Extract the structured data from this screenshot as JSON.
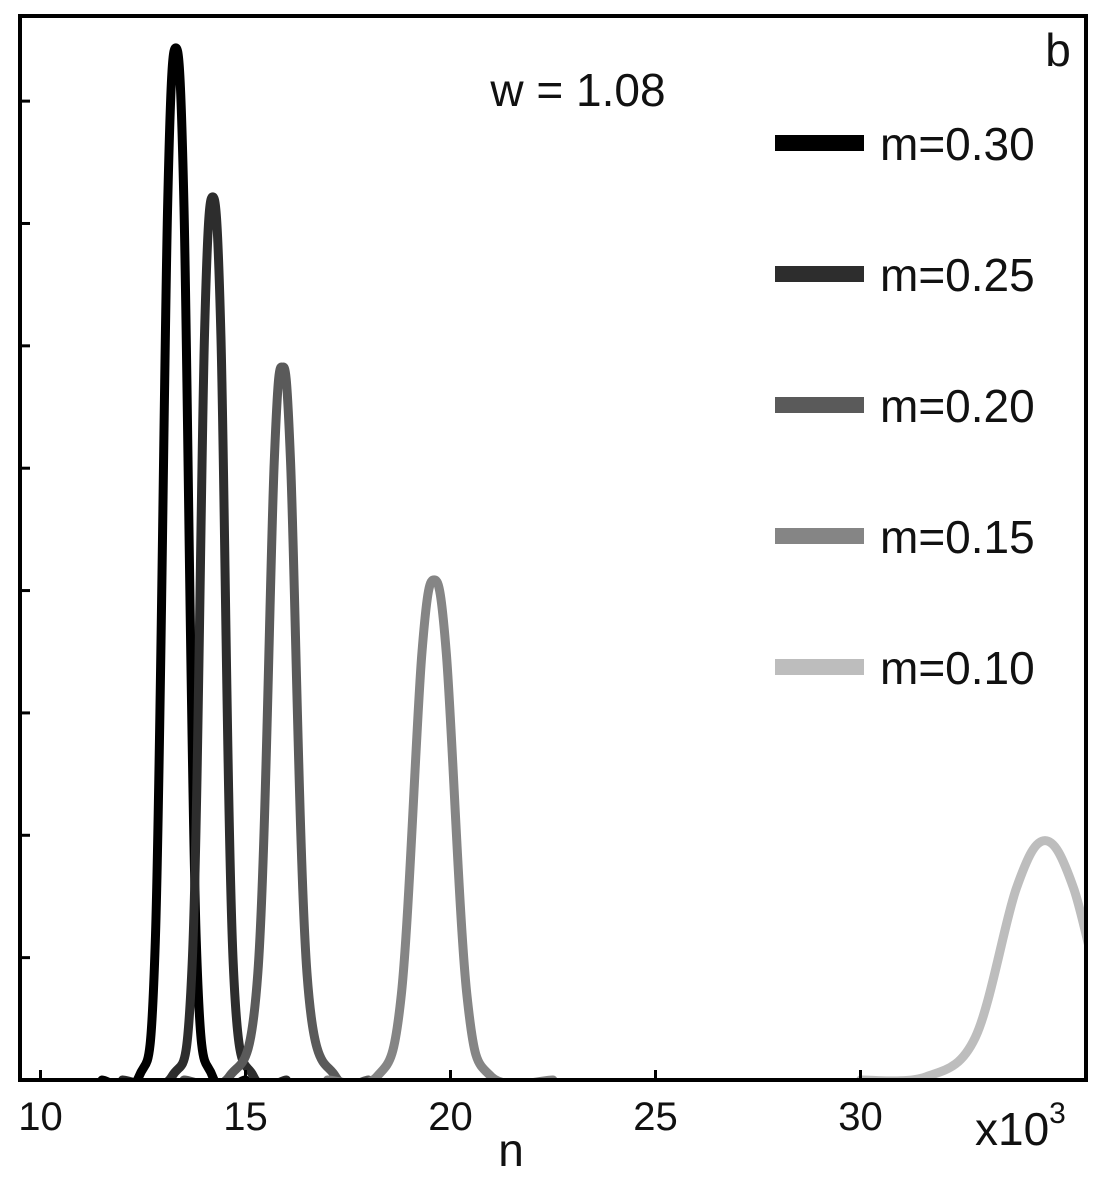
{
  "chart_data": {
    "type": "line",
    "panel_label": "b",
    "annotation": "w = 1.08",
    "xlabel": "n",
    "x_multiplier_label": "x10",
    "x_multiplier_exponent": "3",
    "xlim": [
      9.5,
      35.5
    ],
    "ylim": [
      0,
      1.0
    ],
    "x_ticks": [
      10,
      15,
      20,
      25,
      30
    ],
    "x_tick_labels": [
      "10",
      "15",
      "20",
      "25",
      "30"
    ],
    "y_ticks": [
      0.115,
      0.23,
      0.345,
      0.46,
      0.575,
      0.69,
      0.805,
      0.92
    ],
    "grid": false,
    "legend_position": "right",
    "series": [
      {
        "name": "m=0.30",
        "color": "#000000",
        "x": [
          11.5,
          12.4,
          12.8,
          13.1,
          13.3,
          13.5,
          13.8,
          14.2,
          15.0
        ],
        "y": [
          0.0,
          0.003,
          0.13,
          0.82,
          0.97,
          0.82,
          0.13,
          0.003,
          0.0
        ]
      },
      {
        "name": "m=0.25",
        "color": "#2d2d2d",
        "x": [
          12.0,
          13.2,
          13.7,
          14.0,
          14.2,
          14.4,
          14.7,
          15.2,
          16.0
        ],
        "y": [
          0.0,
          0.003,
          0.11,
          0.7,
          0.83,
          0.7,
          0.11,
          0.003,
          0.0
        ]
      },
      {
        "name": "m=0.20",
        "color": "#5a5a5a",
        "x": [
          13.5,
          14.6,
          15.3,
          15.7,
          15.9,
          16.1,
          16.5,
          17.2,
          18.0
        ],
        "y": [
          0.0,
          0.003,
          0.1,
          0.58,
          0.67,
          0.58,
          0.1,
          0.003,
          0.0
        ]
      },
      {
        "name": "m=0.15",
        "color": "#858585",
        "x": [
          17.0,
          18.2,
          18.8,
          19.3,
          19.6,
          19.9,
          20.4,
          21.0,
          22.5
        ],
        "y": [
          0.0,
          0.003,
          0.08,
          0.4,
          0.47,
          0.4,
          0.08,
          0.003,
          0.0
        ]
      },
      {
        "name": "m=0.10",
        "color": "#bdbdbd",
        "x": [
          30.0,
          31.6,
          32.8,
          33.8,
          34.5,
          35.2,
          36.2,
          37.4,
          38.5
        ],
        "y": [
          0.0,
          0.003,
          0.04,
          0.18,
          0.225,
          0.18,
          0.04,
          0.003,
          0.0
        ]
      }
    ]
  }
}
